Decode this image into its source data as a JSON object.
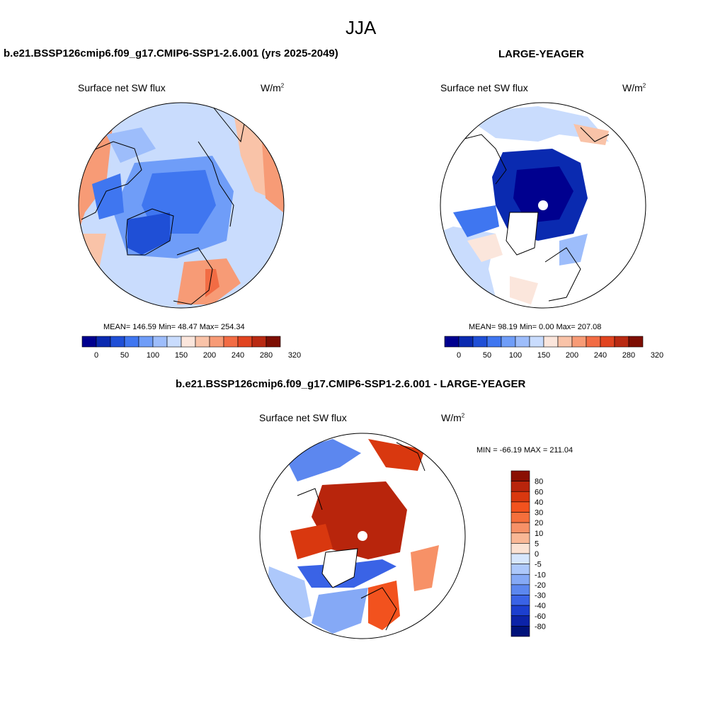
{
  "figure": {
    "title": "JJA"
  },
  "panels": {
    "model": {
      "title": "b.e21.BSSP126cmip6.f09_g17.CMIP6-SSP1-2.6.001 (yrs 2025-2049)",
      "variable": "Surface net SW flux",
      "unit_base": "W/m",
      "unit_exp": "2",
      "stats": "MEAN= 146.59  Min=  48.47  Max= 254.34"
    },
    "obs": {
      "title": "LARGE-YEAGER",
      "variable": "Surface net SW flux",
      "unit_base": "W/m",
      "unit_exp": "2",
      "stats": "MEAN=  98.19  Min=   0.00  Max= 207.08"
    },
    "diff": {
      "title": "b.e21.BSSP126cmip6.f09_g17.CMIP6-SSP1-2.6.001 - LARGE-YEAGER",
      "variable": "Surface net SW flux",
      "unit_base": "W/m",
      "unit_exp": "2",
      "stats": "MIN = -66.19 MAX = 211.04"
    }
  },
  "colorbars": {
    "absolute": {
      "labels": [
        "0",
        "50",
        "100",
        "150",
        "200",
        "240",
        "280",
        "320"
      ],
      "colors": [
        "#00008f",
        "#0a2ab0",
        "#1f4fd6",
        "#3f76f0",
        "#6f9df8",
        "#9dbdfb",
        "#c9dcfd",
        "#fbe6dc",
        "#f9c3a8",
        "#f79b76",
        "#f26c44",
        "#e14420",
        "#b92a12",
        "#7d0e03"
      ]
    },
    "difference": {
      "labels": [
        "80",
        "60",
        "40",
        "30",
        "20",
        "10",
        "5",
        "0",
        "-5",
        "-10",
        "-20",
        "-30",
        "-40",
        "-60",
        "-80"
      ],
      "colors": [
        "#8a0f03",
        "#b8250c",
        "#d9380f",
        "#f2521e",
        "#f56f3c",
        "#f79167",
        "#f9b795",
        "#fbe2d3",
        "#d6e6fd",
        "#adc8fb",
        "#85a9f6",
        "#5c87ef",
        "#3a63e6",
        "#1c3fcf",
        "#0c23a8",
        "#00127a"
      ]
    },
    "colors_map": {
      "land": "#ffffff",
      "ocean_ice": "#ffffff",
      "outline": "#000000"
    }
  }
}
